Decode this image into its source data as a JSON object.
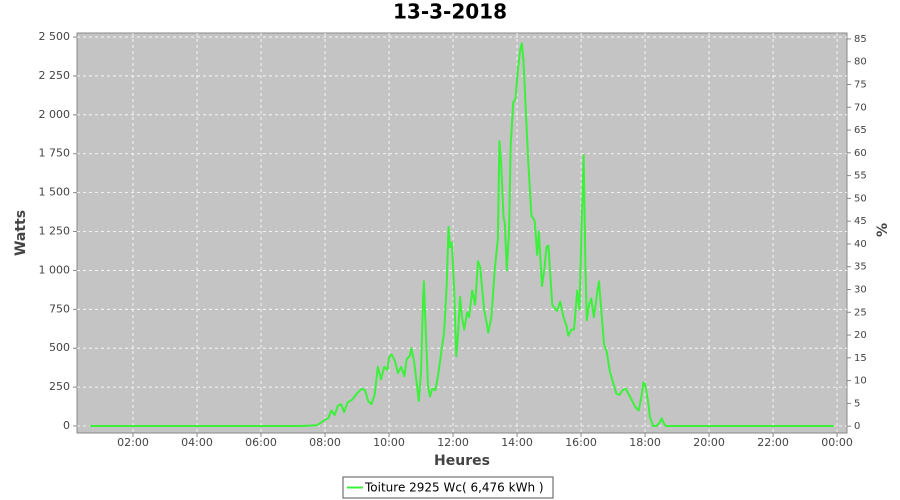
{
  "chart_data": {
    "type": "line",
    "title": "13-3-2018",
    "xlabel": "Heures",
    "ylabel": "Watts",
    "y2label": "%",
    "x": [
      0.66,
      7.25,
      7.75,
      7.9,
      8.0,
      8.1,
      8.2,
      8.3,
      8.4,
      8.5,
      8.6,
      8.7,
      8.85,
      9.0,
      9.15,
      9.25,
      9.35,
      9.45,
      9.55,
      9.65,
      9.75,
      9.85,
      9.95,
      10.0,
      10.08,
      10.18,
      10.28,
      10.38,
      10.48,
      10.55,
      10.65,
      10.7,
      10.78,
      10.85,
      10.93,
      11.0,
      11.06,
      11.09,
      11.15,
      11.22,
      11.28,
      11.35,
      11.45,
      11.55,
      11.65,
      11.72,
      11.8,
      11.86,
      11.9,
      11.96,
      12.03,
      12.1,
      12.16,
      12.22,
      12.28,
      12.35,
      12.44,
      12.5,
      12.6,
      12.69,
      12.78,
      12.85,
      12.97,
      13.06,
      13.1,
      13.2,
      13.3,
      13.4,
      13.45,
      13.5,
      13.58,
      13.62,
      13.68,
      13.75,
      13.8,
      13.88,
      13.95,
      14.03,
      14.1,
      14.15,
      14.2,
      14.28,
      14.35,
      14.45,
      14.55,
      14.63,
      14.68,
      14.78,
      14.85,
      14.92,
      14.98,
      15.03,
      15.1,
      15.16,
      15.25,
      15.35,
      15.45,
      15.55,
      15.6,
      15.7,
      15.78,
      15.88,
      15.95,
      16.02,
      16.08,
      16.14,
      16.18,
      16.25,
      16.32,
      16.4,
      16.5,
      16.56,
      16.65,
      16.72,
      16.8,
      16.9,
      17.0,
      17.1,
      17.2,
      17.3,
      17.4,
      17.5,
      17.6,
      17.7,
      17.8,
      17.88,
      17.95,
      18.0,
      18.1,
      18.15,
      18.25,
      18.35,
      18.45,
      18.52,
      18.58,
      18.65,
      23.9
    ],
    "series": [
      {
        "name": "Toiture 2925 Wc( 6,476 kWh )",
        "color": "#3cf03c",
        "values": [
          0,
          0,
          5,
          25,
          40,
          50,
          100,
          70,
          130,
          140,
          90,
          150,
          170,
          210,
          240,
          230,
          160,
          140,
          200,
          380,
          300,
          380,
          360,
          440,
          460,
          420,
          340,
          380,
          320,
          430,
          450,
          500,
          420,
          300,
          160,
          350,
          800,
          930,
          600,
          250,
          190,
          240,
          230,
          350,
          500,
          600,
          900,
          1280,
          1150,
          1180,
          900,
          450,
          600,
          830,
          700,
          620,
          730,
          700,
          870,
          780,
          1060,
          1020,
          750,
          650,
          600,
          700,
          1000,
          1200,
          1830,
          1700,
          1340,
          1300,
          1000,
          1250,
          1800,
          2080,
          2100,
          2300,
          2420,
          2460,
          2350,
          2000,
          1700,
          1350,
          1320,
          1100,
          1250,
          900,
          1000,
          1150,
          1160,
          1000,
          780,
          760,
          740,
          800,
          700,
          640,
          580,
          620,
          620,
          870,
          750,
          1300,
          1740,
          1000,
          680,
          780,
          820,
          700,
          850,
          930,
          700,
          520,
          480,
          350,
          280,
          210,
          200,
          230,
          240,
          200,
          160,
          120,
          100,
          180,
          280,
          270,
          150,
          60,
          0,
          0,
          20,
          50,
          20,
          0,
          0
        ]
      }
    ],
    "xlim": [
      0.25,
      24.31
    ],
    "xticks": [
      {
        "value": 2,
        "label": "02:00"
      },
      {
        "value": 4,
        "label": "04:00"
      },
      {
        "value": 6,
        "label": "06:00"
      },
      {
        "value": 8,
        "label": "08:00"
      },
      {
        "value": 10,
        "label": "10:00"
      },
      {
        "value": 12,
        "label": "12:00"
      },
      {
        "value": 14,
        "label": "14:00"
      },
      {
        "value": 16,
        "label": "16:00"
      },
      {
        "value": 18,
        "label": "18:00"
      },
      {
        "value": 20,
        "label": "20:00"
      },
      {
        "value": 22,
        "label": "22:00"
      },
      {
        "value": 24,
        "label": "00:00"
      }
    ],
    "ylim": [
      -45,
      2526
    ],
    "yticks": [
      0,
      250,
      500,
      750,
      {
        "value": 1000,
        "label": "1 000"
      },
      {
        "value": 1250,
        "label": "1 250"
      },
      {
        "value": 1500,
        "label": "1 500"
      },
      {
        "value": 1750,
        "label": "1 750"
      },
      {
        "value": 2000,
        "label": "2 000"
      },
      {
        "value": 2250,
        "label": "2 250"
      },
      {
        "value": 2500,
        "label": "2 500"
      }
    ],
    "y2lim": [
      -1.5,
      86.3
    ],
    "y2ticks": [
      0,
      5,
      10,
      15,
      20,
      25,
      30,
      35,
      40,
      45,
      50,
      55,
      60,
      65,
      70,
      75,
      80,
      85
    ],
    "grid": true,
    "legend": "bottom"
  }
}
